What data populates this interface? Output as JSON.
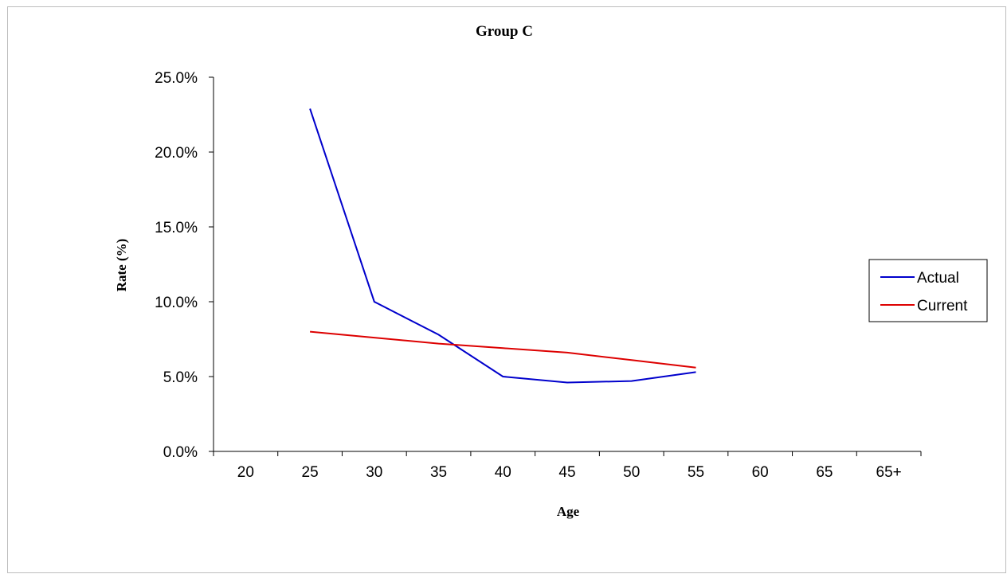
{
  "chart_data": {
    "type": "line",
    "title": "Group C",
    "xlabel": "Age",
    "ylabel": "Rate (%)",
    "categories": [
      "20",
      "25",
      "30",
      "35",
      "40",
      "45",
      "50",
      "55",
      "60",
      "65",
      "65+"
    ],
    "y_ticks": [
      "0.0%",
      "5.0%",
      "10.0%",
      "15.0%",
      "20.0%",
      "25.0%"
    ],
    "ylim": [
      0,
      25
    ],
    "grid": false,
    "legend_position": "right",
    "series": [
      {
        "name": "Actual",
        "color": "#0000cc",
        "values": [
          null,
          22.9,
          10.0,
          7.8,
          5.0,
          4.6,
          4.7,
          5.3,
          null,
          null,
          null
        ]
      },
      {
        "name": "Current",
        "color": "#dd0000",
        "values": [
          null,
          8.0,
          7.6,
          7.2,
          6.9,
          6.6,
          6.1,
          5.6,
          null,
          null,
          null
        ]
      }
    ]
  }
}
